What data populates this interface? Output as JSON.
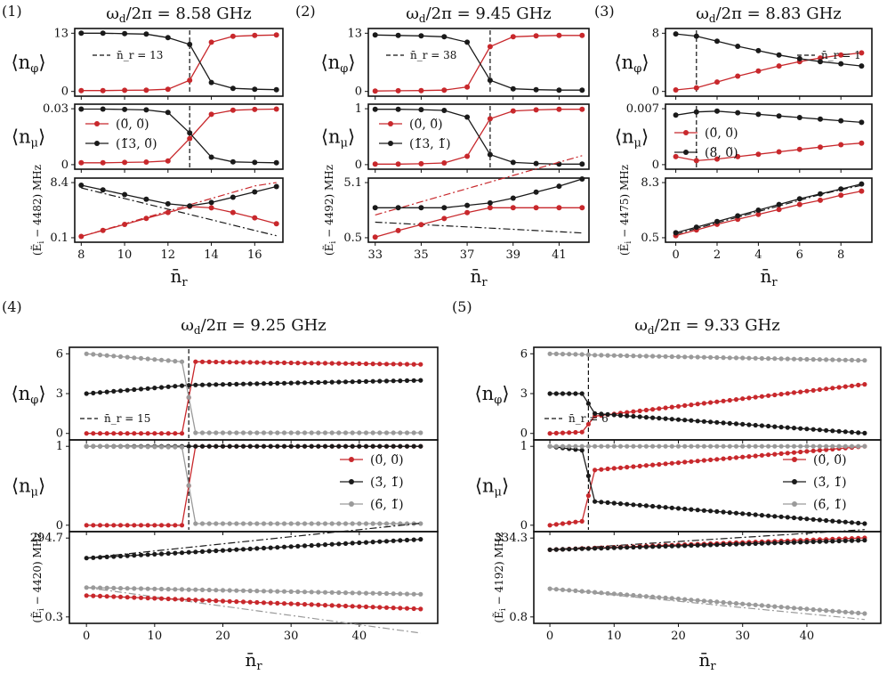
{
  "figure": {
    "panel_labels": [
      "(1)",
      "(2)",
      "(3)",
      "(4)",
      "(5)"
    ],
    "legend_label_prefix": "n̄",
    "y_labels": {
      "n_phi": "⟨n",
      "n_phi_sub": "φ",
      "n_mu": "⟨n",
      "n_mu_sub": "μ",
      "energy_prefix": "(Ẽ",
      "energy_unit": "MHz"
    },
    "x_label_base": "n̄",
    "x_label_sub": "r"
  },
  "chart_data": [
    {
      "panel": "(1)",
      "title": "ω_d/2π = 8.58 GHz",
      "type": "line",
      "x": [
        8,
        9,
        10,
        11,
        12,
        13,
        14,
        15,
        16,
        17
      ],
      "xticks": [
        8,
        10,
        12,
        14,
        16
      ],
      "xlim": [
        7.7,
        17.3
      ],
      "xlabel": "n̄_r",
      "resonance": {
        "label": "n̄_r = 13",
        "x": 13
      },
      "series_colors": [
        "#c8282c",
        "#1a1a1a"
      ],
      "n_phi": {
        "ylim": [
          0,
          13
        ],
        "yticks": [
          "0",
          "13"
        ],
        "series": [
          {
            "values": [
              0.2,
              0.2,
              0.25,
              0.3,
              0.5,
              2.5,
              11.0,
              12.3,
              12.5,
              12.6
            ]
          },
          {
            "values": [
              13.0,
              13.0,
              12.9,
              12.8,
              12.0,
              10.5,
              2.0,
              0.7,
              0.5,
              0.4
            ]
          }
        ]
      },
      "n_mu": {
        "ylim": [
          0,
          0.03
        ],
        "yticks": [
          "0",
          "0.03"
        ],
        "legend": [
          "(0̃, 0̃)",
          "(1̃3, 0̃)"
        ],
        "series": [
          {
            "values": [
              0.001,
              0.001,
              0.0012,
              0.0014,
              0.002,
              0.014,
              0.027,
              0.0292,
              0.0296,
              0.0298
            ]
          },
          {
            "values": [
              0.0298,
              0.0298,
              0.0296,
              0.0294,
              0.028,
              0.017,
              0.004,
              0.0015,
              0.0012,
              0.001
            ]
          }
        ]
      },
      "energy": {
        "offset": "4482",
        "ylim": [
          0.1,
          8.4
        ],
        "yticks": [
          "0.1",
          "8.4"
        ],
        "series": [
          {
            "values": [
              0.3,
              1.2,
              2.1,
              3.0,
              3.9,
              4.8,
              4.6,
              3.9,
              3.1,
              2.2
            ]
          },
          {
            "values": [
              8.0,
              7.3,
              6.6,
              5.9,
              5.2,
              4.9,
              5.4,
              6.2,
              7.0,
              7.8
            ]
          }
        ],
        "dashdot": [
          {
            "color": "#c8282c",
            "values": [
              0.3,
              1.25,
              2.2,
              3.15,
              4.1,
              5.05,
              6.0,
              6.95,
              7.9,
              8.4
            ]
          },
          {
            "color": "#1a1a1a",
            "values": [
              7.6,
              6.8,
              6.0,
              5.2,
              4.4,
              3.6,
              2.8,
              2.0,
              1.2,
              0.4
            ]
          }
        ]
      }
    },
    {
      "panel": "(2)",
      "title": "ω_d/2π = 9.45 GHz",
      "type": "line",
      "x": [
        33,
        34,
        35,
        36,
        37,
        38,
        39,
        40,
        41,
        42
      ],
      "xticks": [
        33,
        35,
        37,
        39,
        41
      ],
      "xlim": [
        32.7,
        42.3
      ],
      "xlabel": "n̄_r",
      "resonance": {
        "label": "n̄_r = 38",
        "x": 38
      },
      "series_colors": [
        "#c8282c",
        "#1a1a1a"
      ],
      "n_phi": {
        "ylim": [
          0,
          13
        ],
        "yticks": [
          "0",
          "13"
        ],
        "series": [
          {
            "values": [
              0.1,
              0.15,
              0.2,
              0.3,
              1.0,
              10.0,
              12.2,
              12.4,
              12.5,
              12.5
            ]
          },
          {
            "values": [
              12.6,
              12.5,
              12.4,
              12.2,
              11.0,
              2.5,
              0.6,
              0.4,
              0.3,
              0.3
            ]
          }
        ]
      },
      "n_mu": {
        "ylim": [
          0,
          1
        ],
        "yticks": [
          "0",
          "1"
        ],
        "legend": [
          "(0̃, 0̃)",
          "(1̃3, 1̃)"
        ],
        "series": [
          {
            "values": [
              0.01,
              0.01,
              0.015,
              0.03,
              0.15,
              0.82,
              0.96,
              0.98,
              0.99,
              0.99
            ]
          },
          {
            "values": [
              0.99,
              0.99,
              0.985,
              0.97,
              0.85,
              0.18,
              0.04,
              0.02,
              0.01,
              0.01
            ]
          }
        ]
      },
      "energy": {
        "offset": "4492",
        "ylim": [
          0.5,
          5.1
        ],
        "yticks": [
          "0.5",
          "5.1"
        ],
        "series": [
          {
            "values": [
              0.55,
              1.1,
              1.6,
              2.1,
              2.6,
              3.0,
              3.0,
              3.0,
              3.0,
              3.0
            ]
          },
          {
            "values": [
              3.0,
              3.0,
              3.0,
              3.0,
              3.2,
              3.4,
              3.8,
              4.3,
              4.8,
              5.4
            ]
          }
        ],
        "dashdot": [
          {
            "color": "#c8282c",
            "values": [
              2.4,
              2.95,
              3.5,
              4.05,
              4.6,
              5.15,
              5.7,
              6.25,
              6.8,
              7.35
            ]
          },
          {
            "color": "#1a1a1a",
            "values": [
              1.8,
              1.7,
              1.6,
              1.5,
              1.4,
              1.3,
              1.2,
              1.1,
              1.0,
              0.9
            ]
          }
        ]
      }
    },
    {
      "panel": "(3)",
      "title": "ω_d/2π = 8.83 GHz",
      "type": "line",
      "x": [
        0,
        1,
        2,
        3,
        4,
        5,
        6,
        7,
        8,
        9
      ],
      "xticks": [
        0,
        2,
        4,
        6,
        8
      ],
      "xlim": [
        -0.5,
        9.5
      ],
      "xlabel": "n̄_r",
      "resonance": {
        "label": "n̄_r = 1",
        "x": 1
      },
      "series_colors": [
        "#c8282c",
        "#1a1a1a"
      ],
      "n_phi": {
        "ylim": [
          0,
          8
        ],
        "yticks": [
          "0",
          "8"
        ],
        "series": [
          {
            "values": [
              0.2,
              0.5,
              1.3,
              2.1,
              2.8,
              3.5,
              4.1,
              4.6,
              5.0,
              5.3
            ]
          },
          {
            "values": [
              7.9,
              7.6,
              6.9,
              6.2,
              5.6,
              5.0,
              4.5,
              4.1,
              3.8,
              3.5
            ]
          }
        ]
      },
      "n_mu": {
        "ylim": [
          0,
          0.007
        ],
        "yticks": [
          "0",
          "0.007"
        ],
        "legend": [
          "(0̃, 0̃)",
          "(8̃, 0̃)"
        ],
        "series": [
          {
            "values": [
              0.001,
              0.0005,
              0.0007,
              0.001,
              0.0013,
              0.0016,
              0.0019,
              0.0022,
              0.0025,
              0.0027
            ]
          },
          {
            "values": [
              0.0062,
              0.0066,
              0.0067,
              0.0065,
              0.0063,
              0.0061,
              0.0059,
              0.0057,
              0.0055,
              0.0053
            ]
          }
        ]
      },
      "energy": {
        "offset": "4475",
        "ylim": [
          0.5,
          8.3
        ],
        "yticks": [
          "0.5",
          "8.3"
        ],
        "series": [
          {
            "values": [
              0.8,
              1.6,
              2.4,
              3.1,
              3.8,
              4.5,
              5.2,
              5.8,
              6.5,
              7.1
            ]
          },
          {
            "values": [
              1.2,
              2.0,
              2.8,
              3.6,
              4.4,
              5.2,
              6.0,
              6.7,
              7.4,
              8.1
            ]
          }
        ],
        "dashdot": [
          {
            "color": "#1a1a1a",
            "values": [
              1.0,
              1.8,
              2.6,
              3.4,
              4.2,
              5.0,
              5.8,
              6.6,
              7.3,
              7.9
            ]
          }
        ]
      }
    },
    {
      "panel": "(4)",
      "title": "ω_d/2π = 9.25 GHz",
      "type": "line",
      "x_range": [
        0,
        49
      ],
      "xticks": [
        0,
        10,
        20,
        30,
        40
      ],
      "xlim": [
        -2.5,
        51.5
      ],
      "xlabel": "n̄_r",
      "resonance": {
        "label": "n̄_r = 15",
        "x": 15
      },
      "series_colors": [
        "#c8282c",
        "#1a1a1a",
        "#9a9a9a"
      ],
      "n_phi": {
        "ylim": [
          0,
          6
        ],
        "yticks": [
          "0",
          "3",
          "6"
        ],
        "series": [
          {
            "start": 0.0,
            "end": 0.0,
            "after": 5.4,
            "after_end": 5.2
          },
          {
            "start": 3.0,
            "end": 3.6,
            "after": 3.65,
            "after_end": 4.0
          },
          {
            "start": 6.0,
            "end": 5.4,
            "after": 0.05,
            "after_end": 0.05
          }
        ]
      },
      "n_mu": {
        "ylim": [
          0,
          1
        ],
        "yticks": [
          "0",
          "1"
        ],
        "legend": [
          "(0̃, 0̃)",
          "(3̃, 1̃)",
          "(6̃, 1̃)"
        ],
        "series": [
          {
            "start": 0.0,
            "end": 0.0,
            "after": 1.0,
            "after_end": 1.0
          },
          {
            "start": 1.0,
            "end": 1.0,
            "after": 1.0,
            "after_end": 1.0
          },
          {
            "start": 1.0,
            "end": 0.99,
            "after": 0.02,
            "after_end": 0.02
          }
        ]
      },
      "energy": {
        "offset": "4420",
        "ylim": [
          0.3,
          294.7
        ],
        "yticks": [
          "0.3",
          "294.7"
        ],
        "series": [
          {
            "start": 80,
            "end": 30
          },
          {
            "start": 220,
            "end": 290
          },
          {
            "start": 110,
            "end": 85
          }
        ],
        "dashdot": [
          {
            "color": "#1a1a1a",
            "start": 220,
            "end": 350
          },
          {
            "color": "#9a9a9a",
            "start": 110,
            "end": -60
          }
        ]
      }
    },
    {
      "panel": "(5)",
      "title": "ω_d/2π = 9.33 GHz",
      "type": "line",
      "x_range": [
        0,
        49
      ],
      "xticks": [
        0,
        10,
        20,
        30,
        40
      ],
      "xlim": [
        -2.5,
        51.5
      ],
      "xlabel": "n̄_r",
      "resonance": {
        "label": "n̄_r = 6",
        "x": 6
      },
      "series_colors": [
        "#c8282c",
        "#1a1a1a",
        "#9a9a9a"
      ],
      "n_phi": {
        "ylim": [
          0,
          6
        ],
        "yticks": [
          "0",
          "3",
          "6"
        ],
        "series": [
          {
            "start": 0.0,
            "end": 0.1,
            "after": 1.3,
            "after_end": 3.7
          },
          {
            "start": 3.0,
            "end": 3.0,
            "after": 1.5,
            "after_end": 0.02
          },
          {
            "start": 6.0,
            "end": 5.95,
            "after": 5.9,
            "after_end": 5.5
          }
        ]
      },
      "n_mu": {
        "ylim": [
          0,
          1
        ],
        "yticks": [
          "0",
          "1"
        ],
        "legend": [
          "(0̃, 0̃)",
          "(3̃, 1̃)",
          "(6̃, 1̃)"
        ],
        "series": [
          {
            "start": 0.0,
            "end": 0.05,
            "after": 0.7,
            "after_end": 1.0
          },
          {
            "start": 1.0,
            "end": 0.95,
            "after": 0.3,
            "after_end": 0.02
          },
          {
            "start": 1.0,
            "end": 1.0,
            "after": 1.0,
            "after_end": 1.0
          }
        ]
      },
      "energy": {
        "offset": "4192",
        "ylim": [
          0.8,
          334.3
        ],
        "yticks": [
          "0.8",
          "334.3"
        ],
        "series": [
          {
            "start": 285,
            "end": 335
          },
          {
            "start": 285,
            "end": 325
          },
          {
            "start": 120,
            "end": 15
          }
        ],
        "dashdot": [
          {
            "color": "#1a1a1a",
            "start": 285,
            "end": 370
          },
          {
            "color": "#9a9a9a",
            "start": 120,
            "end": -10
          }
        ]
      }
    }
  ]
}
